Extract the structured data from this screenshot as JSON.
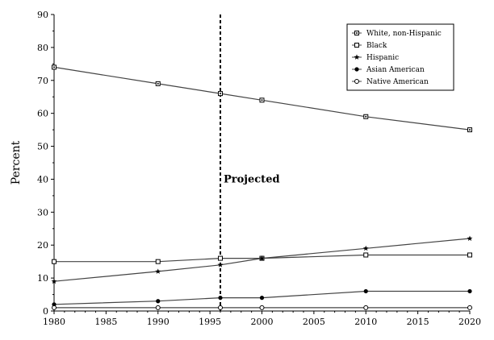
{
  "chart_data": {
    "type": "line",
    "title": "",
    "xlabel": "",
    "ylabel": "Percent",
    "xlim": [
      1980,
      2020
    ],
    "ylim": [
      0,
      90
    ],
    "xticks": [
      1980,
      1985,
      1990,
      1995,
      2000,
      2005,
      2010,
      2015,
      2020
    ],
    "yticks": [
      0,
      10,
      20,
      30,
      40,
      50,
      60,
      70,
      80,
      90
    ],
    "grid": false,
    "legend_position": "top-right",
    "annotation": {
      "text": "Projected",
      "x": 1996
    },
    "series": [
      {
        "name": "White, non-Hispanic",
        "marker": "square-dot",
        "x": [
          1980,
          1990,
          1996,
          2000,
          2010,
          2020
        ],
        "y": [
          74,
          69,
          66,
          64,
          59,
          55
        ]
      },
      {
        "name": "Black",
        "marker": "square-open",
        "x": [
          1980,
          1990,
          1996,
          2000,
          2010,
          2020
        ],
        "y": [
          15,
          15,
          16,
          16,
          17,
          17
        ]
      },
      {
        "name": "Hispanic",
        "marker": "star",
        "x": [
          1980,
          1990,
          1996,
          2000,
          2010,
          2020
        ],
        "y": [
          9,
          12,
          14,
          16,
          19,
          22
        ]
      },
      {
        "name": "Asian American",
        "marker": "circle-filled",
        "x": [
          1980,
          1990,
          1996,
          2000,
          2010,
          2020
        ],
        "y": [
          2,
          3,
          4,
          4,
          6,
          6
        ]
      },
      {
        "name": "Native American",
        "marker": "circle-open",
        "x": [
          1980,
          1990,
          1996,
          2000,
          2010,
          2020
        ],
        "y": [
          1,
          1,
          1,
          1,
          1,
          1
        ]
      }
    ]
  }
}
